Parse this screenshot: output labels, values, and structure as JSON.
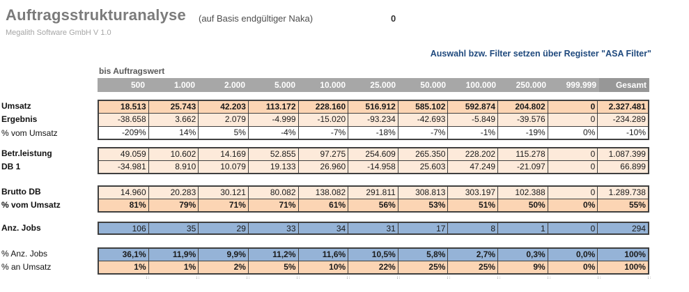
{
  "header": {
    "title": "Auftragsstrukturanalyse",
    "subtitle": "(auf Basis endgültiger Naka)",
    "value_zero": "0",
    "app_version": "Megalith Software GmbH V 1.0",
    "filter_hint": "Auswahl bzw. Filter setzen über Register \"ASA Filter\"",
    "column_group_label": "bis Auftragswert"
  },
  "colors": {
    "header_bg": "#a7a7a7",
    "gesamt_header_bg": "#979797",
    "peach_dark": "#fcd5b4",
    "peach_light": "#fdeada",
    "blue_row": "#95b3d7",
    "filter_hint_blue": "#1f497d",
    "title_gray": "#7b7b7b"
  },
  "table": {
    "columns": [
      "500",
      "1.000",
      "2.000",
      "5.000",
      "10.000",
      "25.000",
      "50.000",
      "100.000",
      "250.000",
      "999.999",
      "Gesamt"
    ],
    "blocks": [
      {
        "rows": [
          {
            "label": "Umsatz",
            "label_bold": true,
            "bg": "peach-dark",
            "values_bold": true,
            "values": [
              "18.513",
              "25.743",
              "42.203",
              "113.172",
              "228.160",
              "516.912",
              "585.102",
              "592.874",
              "204.802",
              "0",
              "2.327.481"
            ]
          },
          {
            "label": "Ergebnis",
            "label_bold": true,
            "bg": "peach-light",
            "values_bold": false,
            "values": [
              "-38.658",
              "3.662",
              "2.079",
              "-4.999",
              "-15.020",
              "-93.234",
              "-42.693",
              "-5.849",
              "-39.576",
              "0",
              "-234.289"
            ]
          },
          {
            "label": "% vom Umsatz",
            "label_bold": false,
            "bg": "white",
            "values_bold": false,
            "values": [
              "-209%",
              "14%",
              "5%",
              "-4%",
              "-7%",
              "-18%",
              "-7%",
              "-1%",
              "-19%",
              "0%",
              "-10%"
            ]
          }
        ]
      },
      {
        "rows": [
          {
            "label": "Betr.leistung",
            "label_bold": true,
            "bg": "peach-light",
            "values_bold": false,
            "values": [
              "49.059",
              "10.602",
              "14.169",
              "52.855",
              "97.275",
              "254.609",
              "265.350",
              "228.202",
              "115.278",
              "0",
              "1.087.399"
            ]
          },
          {
            "label": "DB 1",
            "label_bold": true,
            "bg": "peach-light",
            "values_bold": false,
            "values": [
              "-34.981",
              "8.910",
              "10.079",
              "19.133",
              "26.960",
              "-14.958",
              "25.603",
              "47.249",
              "-21.097",
              "0",
              "66.899"
            ]
          }
        ]
      },
      {
        "rows": [
          {
            "label": "Brutto DB",
            "label_bold": true,
            "bg": "peach-light",
            "values_bold": false,
            "values": [
              "14.960",
              "20.283",
              "30.121",
              "80.082",
              "138.082",
              "291.811",
              "308.813",
              "303.197",
              "102.388",
              "0",
              "1.289.738"
            ]
          },
          {
            "label": "% vom Umsatz",
            "label_bold": true,
            "bg": "peach-dark",
            "values_bold": true,
            "values": [
              "81%",
              "79%",
              "71%",
              "71%",
              "61%",
              "56%",
              "53%",
              "51%",
              "50%",
              "0%",
              "55%"
            ]
          }
        ]
      },
      {
        "rows": [
          {
            "label": "Anz. Jobs",
            "label_bold": true,
            "bg": "blue",
            "values_bold": false,
            "values": [
              "106",
              "35",
              "29",
              "33",
              "34",
              "31",
              "17",
              "8",
              "1",
              "0",
              "294"
            ]
          }
        ]
      },
      {
        "rows": [
          {
            "label": "% Anz. Jobs",
            "label_bold": false,
            "bg": "blue",
            "values_bold": true,
            "values": [
              "36,1%",
              "11,9%",
              "9,9%",
              "11,2%",
              "11,6%",
              "10,5%",
              "5,8%",
              "2,7%",
              "0,3%",
              "0,0%",
              "100%"
            ]
          },
          {
            "label": "% an Umsatz",
            "label_bold": false,
            "bg": "peach-dark",
            "values_bold": true,
            "values": [
              "1%",
              "1%",
              "2%",
              "5%",
              "10%",
              "22%",
              "25%",
              "25%",
              "9%",
              "0%",
              "100%"
            ]
          }
        ]
      }
    ]
  }
}
